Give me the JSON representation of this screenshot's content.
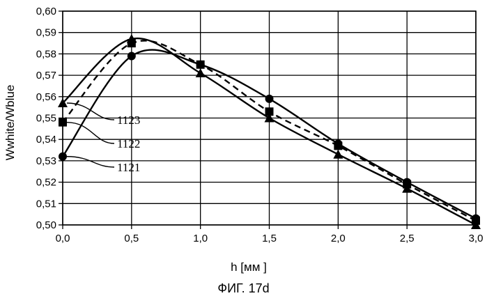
{
  "chart_data": {
    "type": "line",
    "title": "",
    "xlabel": "h [мм ]",
    "ylabel": "Wwhite/Wblue",
    "xlim": [
      0.0,
      3.0
    ],
    "ylim": [
      0.5,
      0.6
    ],
    "grid": true,
    "x_ticks": [
      0.0,
      0.5,
      1.0,
      1.5,
      2.0,
      2.5,
      3.0
    ],
    "x_tick_labels": [
      "0,0",
      "0,5",
      "1,0",
      "1,5",
      "2,0",
      "2,5",
      "3,0"
    ],
    "y_ticks": [
      0.5,
      0.51,
      0.52,
      0.53,
      0.54,
      0.55,
      0.56,
      0.57,
      0.58,
      0.59,
      0.6
    ],
    "y_tick_labels": [
      "0,50",
      "0,51",
      "0,52",
      "0,53",
      "0,54",
      "0,55",
      "0,56",
      "0,57",
      "0,58",
      "0,59",
      "0,60"
    ],
    "series": [
      {
        "name": "1123",
        "marker": "triangle",
        "line": "solid",
        "x": [
          0.0,
          0.5,
          1.0,
          1.5,
          2.0,
          2.5,
          3.0
        ],
        "values": [
          0.557,
          0.587,
          0.571,
          0.55,
          0.533,
          0.517,
          0.5
        ]
      },
      {
        "name": "1122",
        "marker": "square",
        "line": "dashed",
        "x": [
          0.0,
          0.5,
          1.0,
          1.5,
          2.0,
          2.5,
          3.0
        ],
        "values": [
          0.548,
          0.585,
          0.575,
          0.553,
          0.537,
          0.519,
          0.502
        ]
      },
      {
        "name": "1121",
        "marker": "circle",
        "line": "solid",
        "x": [
          0.0,
          0.5,
          1.0,
          1.5,
          2.0,
          2.5,
          3.0
        ],
        "values": [
          0.532,
          0.579,
          0.575,
          0.559,
          0.538,
          0.52,
          0.503
        ]
      }
    ]
  },
  "figure_caption": "ФИГ. 17d"
}
